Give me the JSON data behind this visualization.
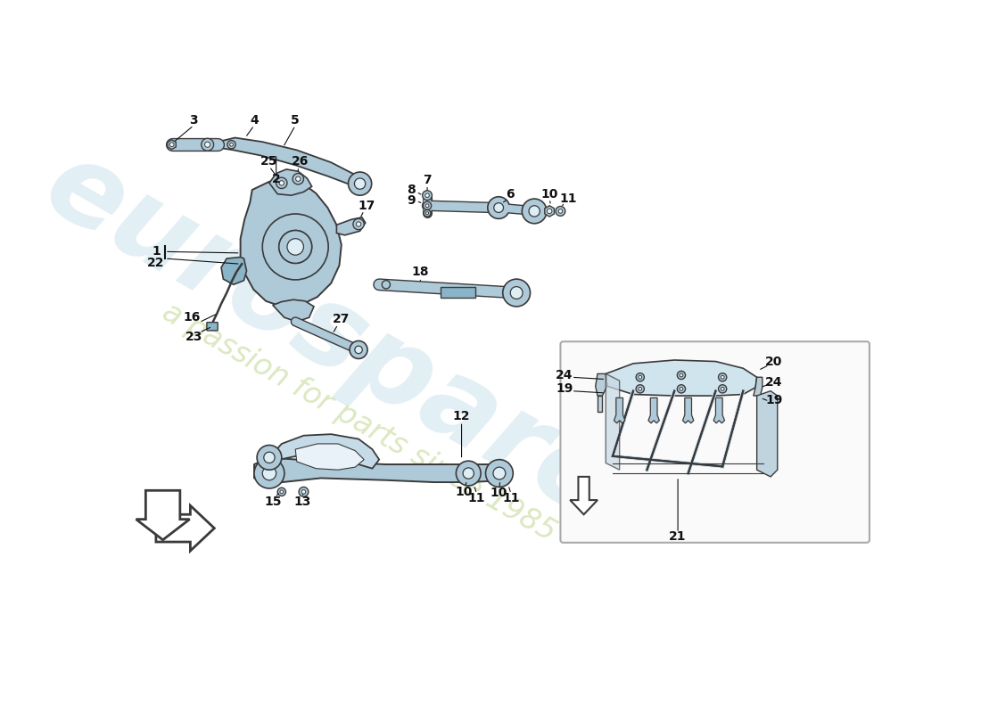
{
  "bg_color": "#ffffff",
  "bc": "#aec9d8",
  "bc2": "#8ab4c8",
  "bc3": "#c5dce8",
  "oc": "#3a3a3a",
  "lc": "#111111",
  "wm1": "#c0dce8",
  "wm2": "#c8dca0",
  "figsize": [
    11.0,
    8.0
  ],
  "dpi": 100
}
